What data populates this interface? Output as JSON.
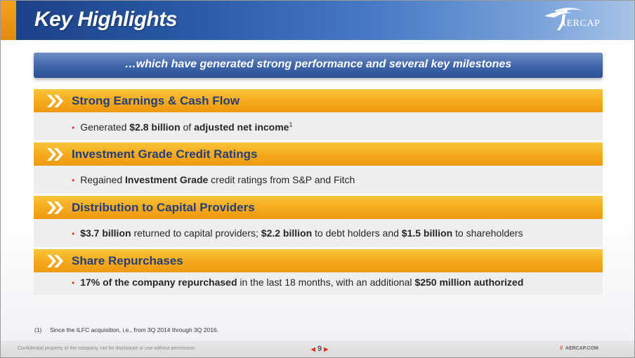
{
  "header": {
    "title": "Key Highlights",
    "logo_text": "AERCAP"
  },
  "banner": {
    "text": "…which have generated strong performance and several key milestones"
  },
  "sections": [
    {
      "title": "Strong Earnings & Cash Flow",
      "bullet": {
        "parts": [
          {
            "text": "Generated ",
            "bold": false
          },
          {
            "text": "$2.8 billion",
            "bold": true
          },
          {
            "text": " of ",
            "bold": false
          },
          {
            "text": "adjusted net income",
            "bold": true
          },
          {
            "text": "1",
            "bold": false,
            "sup": true
          }
        ]
      }
    },
    {
      "title": "Investment Grade Credit Ratings",
      "bullet": {
        "parts": [
          {
            "text": "Regained ",
            "bold": false
          },
          {
            "text": "Investment Grade",
            "bold": true
          },
          {
            "text": " credit ratings from S&P and Fitch",
            "bold": false
          }
        ]
      }
    },
    {
      "title": "Distribution to Capital Providers",
      "bullet": {
        "parts": [
          {
            "text": "$3.7 billion",
            "bold": true
          },
          {
            "text": " returned to capital providers; ",
            "bold": false
          },
          {
            "text": "$2.2 billion",
            "bold": true
          },
          {
            "text": " to debt holders and ",
            "bold": false
          },
          {
            "text": "$1.5 billion",
            "bold": true
          },
          {
            "text": " to shareholders",
            "bold": false
          }
        ]
      }
    },
    {
      "title": "Share Repurchases",
      "bullet": {
        "parts": [
          {
            "text": "17% of the company repurchased",
            "bold": true
          },
          {
            "text": " in the last 18 months, with an additional ",
            "bold": false
          },
          {
            "text": "$250 million authorized",
            "bold": true
          }
        ]
      }
    }
  ],
  "footnote": {
    "number": "(1)",
    "text": "Since the ILFC acquisition, i.e., from 3Q 2014 through 3Q 2016."
  },
  "footer": {
    "confidential": "Confidential property of the company, not for disclosure or use without permission",
    "page_number": "9",
    "url_slashes": "//",
    "url": "AERCAP.COM"
  },
  "colors": {
    "header_blue": "#1b3f86",
    "accent_orange": "#f4a91b",
    "section_title": "#243f7a",
    "bullet_red": "#e0301e"
  }
}
